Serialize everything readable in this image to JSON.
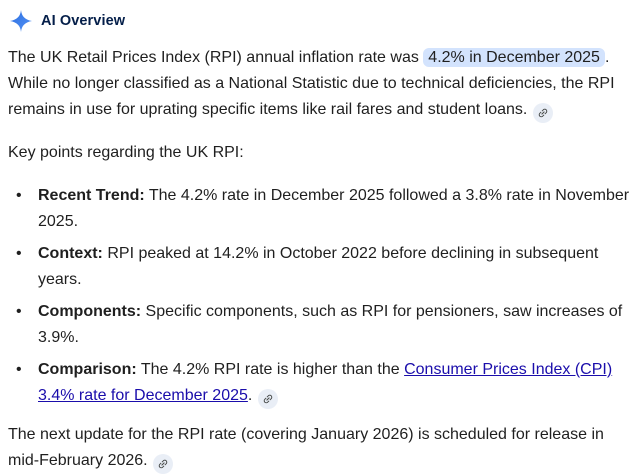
{
  "colors": {
    "text": "#1f1f1f",
    "header": "#041e49",
    "highlight_bg": "#d3e3fd",
    "link": "#1a0dab",
    "chip_bg": "#e9eef6",
    "chip_glyph": "#444746",
    "sparkle_blue_dark": "#2a6de0",
    "sparkle_blue_light": "#5694f5"
  },
  "header": {
    "title": "AI Overview",
    "icon": "ai-sparkle-icon"
  },
  "intro": {
    "segments": [
      {
        "text": "The UK Retail Prices Index (RPI) annual inflation rate was "
      },
      {
        "text": "4.2% in December 2025",
        "style": "highlight",
        "name": "highlighted-snippet"
      },
      {
        "text": ".\nWhile no longer classified as a National Statistic due to technical deficiencies, the RPI\nremains in use for uprating specific items like rail fares and student loans. "
      },
      {
        "type": "link-icon",
        "name": "source-link-icon"
      }
    ]
  },
  "key_points_label": "Key points regarding the UK RPI:",
  "bullets": [
    {
      "segments": [
        {
          "text": "Recent Trend:",
          "style": "bold"
        },
        {
          "text": " The 4.2% rate in December 2025 followed a 3.8% rate in November\n2025."
        }
      ]
    },
    {
      "segments": [
        {
          "text": "Context:",
          "style": "bold"
        },
        {
          "text": " RPI peaked at 14.2% in October 2022 before declining in subsequent\nyears."
        }
      ]
    },
    {
      "segments": [
        {
          "text": "Components:",
          "style": "bold"
        },
        {
          "text": " Specific components, such as RPI for pensioners, saw increases of\n3.9%."
        }
      ]
    },
    {
      "segments": [
        {
          "text": "Comparison:",
          "style": "bold"
        },
        {
          "text": " The 4.2% RPI rate is higher than the "
        },
        {
          "text": "Consumer Prices Index (CPI)\n3.4% rate for December 2025",
          "style": "link",
          "name": "cpi-rate-link"
        },
        {
          "text": ". "
        },
        {
          "type": "link-icon",
          "name": "source-link-icon"
        }
      ]
    }
  ],
  "outro": {
    "segments": [
      {
        "text": "The next update for the RPI rate (covering January 2026) is scheduled for release in\nmid-February 2026. "
      },
      {
        "type": "link-icon",
        "name": "source-link-icon"
      }
    ]
  }
}
